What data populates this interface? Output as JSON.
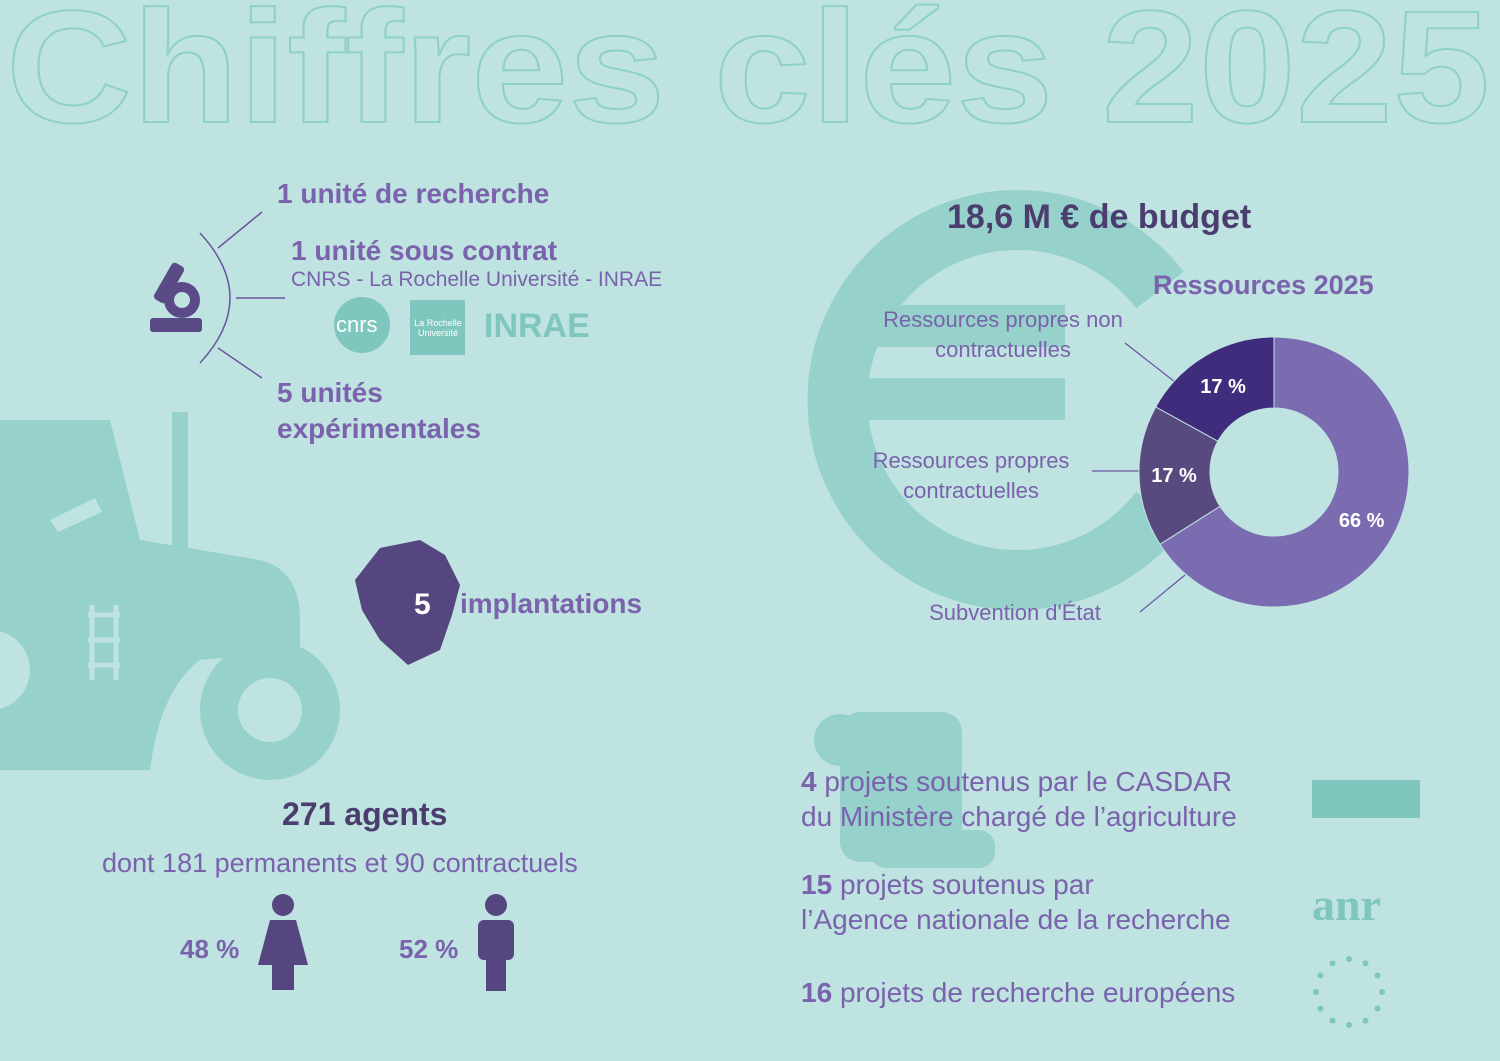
{
  "title": "Chiffres clés 2025",
  "units": {
    "research": "1 unité de recherche",
    "contract": "1 unité sous contrat",
    "partners": "CNRS - La Rochelle Université - INRAE",
    "logos": [
      "cnrs",
      "La Rochelle Université",
      "INRAE"
    ],
    "experimental": [
      "5 unités",
      "expérimentales"
    ]
  },
  "sites": {
    "number": "5",
    "label": "implantations"
  },
  "agents": {
    "title": "271 agents",
    "detail": "dont 181 permanents et 90 contractuels",
    "women": "48 %",
    "men": "52 %"
  },
  "budget": "18,6 M € de budget",
  "chart_data": {
    "type": "donut",
    "title": "Ressources 2025",
    "categories": [
      "Subvention d'État",
      "Ressources propres contractuelles",
      "Ressources propres non contractuelles"
    ],
    "values": [
      66,
      17,
      17
    ],
    "value_labels": [
      "66 %",
      "17 %",
      "17 %"
    ],
    "colors": [
      "#7b6bb0",
      "#584a7e",
      "#3f2c7d"
    ]
  },
  "projects": [
    {
      "count": "4",
      "lines": [
        "projets soutenus par le CASDAR",
        "du Ministère chargé de l’agriculture"
      ]
    },
    {
      "count": "15",
      "lines": [
        "projets soutenus par",
        "l’Agence nationale de la recherche"
      ]
    },
    {
      "count": "16",
      "lines": [
        "projets de recherche européens"
      ]
    }
  ],
  "anr_logo": "anr"
}
